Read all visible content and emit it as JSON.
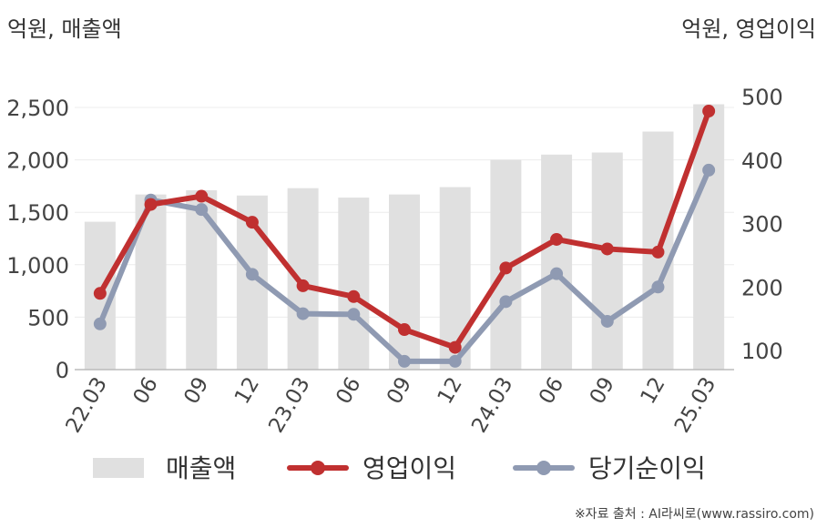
{
  "left_unit": "억원, 매출액",
  "right_unit": "억원, 영업이익",
  "source": "※자료 출처 : AI라씨로(www.rassiro.com)",
  "chart_data": {
    "type": "bar",
    "categories": [
      "22.03",
      "06",
      "09",
      "12",
      "23.03",
      "06",
      "09",
      "12",
      "24.03",
      "06",
      "09",
      "12",
      "25.03"
    ],
    "left_axis": {
      "ylim": [
        0,
        2500
      ],
      "ticks": [
        0,
        500,
        1000,
        1500,
        2000,
        2500
      ],
      "tick_labels": [
        "0",
        "500",
        "1,000",
        "1,500",
        "2,000",
        "2,500"
      ]
    },
    "right_axis": {
      "ylim": [
        70,
        500
      ],
      "ticks": [
        100,
        200,
        300,
        400,
        500
      ],
      "tick_labels": [
        "100",
        "200",
        "300",
        "400",
        "500"
      ]
    },
    "series": [
      {
        "name": "매출액",
        "type": "bar",
        "axis": "left",
        "color": "#e0e0e0",
        "values": [
          1410,
          1670,
          1710,
          1660,
          1730,
          1640,
          1670,
          1740,
          2000,
          2050,
          2070,
          2270,
          2530
        ]
      },
      {
        "name": "영업이익",
        "type": "line",
        "axis": "right",
        "color": "#c03030",
        "values": [
          190,
          330,
          343,
          302,
          202,
          185,
          133,
          105,
          230,
          275,
          260,
          255,
          477
        ]
      },
      {
        "name": "당기순이익",
        "type": "line",
        "axis": "right",
        "color": "#8f9ab2",
        "values": [
          142,
          337,
          322,
          220,
          158,
          157,
          83,
          83,
          177,
          221,
          146,
          200,
          384
        ]
      }
    ],
    "grid": true,
    "legend_position": "bottom"
  }
}
